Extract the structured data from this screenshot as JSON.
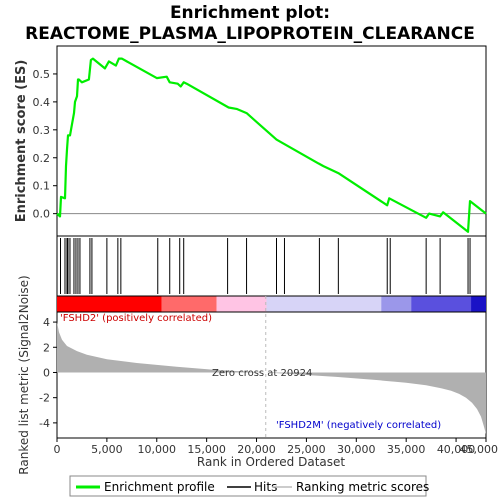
{
  "chart_data": {
    "type": "line",
    "title_line1": "Enrichment plot:",
    "title_line2": "REACTOME_PLASMA_LIPOPROTEIN_CLEARANCE",
    "es_ylabel": "Enrichment score (ES)",
    "metric_ylabel_line1": "Ranked list metric (Signal2Noise)",
    "xlabel": "Rank in Ordered Dataset",
    "xlim": [
      0,
      43000
    ],
    "es_ylim": [
      -0.08,
      0.6
    ],
    "metric_ylim": [
      -5.2,
      4.8
    ],
    "x_ticks": [
      "0",
      "5,000",
      "10,000",
      "15,000",
      "20,000",
      "25,000",
      "30,000",
      "35,000",
      "40,000",
      "45,000"
    ],
    "x_tick_values": [
      0,
      5000,
      10000,
      15000,
      20000,
      25000,
      30000,
      35000,
      40000,
      45000
    ],
    "es_ticks": [
      "0.0",
      "0.1",
      "0.2",
      "0.3",
      "0.4",
      "0.5"
    ],
    "es_tick_values": [
      0.0,
      0.1,
      0.2,
      0.3,
      0.4,
      0.5
    ],
    "metric_ticks": [
      "-4",
      "-2",
      "0",
      "2",
      "4"
    ],
    "metric_tick_values": [
      -4,
      -2,
      0,
      2,
      4
    ],
    "enrichment_profile": {
      "x": [
        0,
        300,
        400,
        800,
        900,
        1000,
        1100,
        1300,
        1500,
        1700,
        1800,
        2000,
        2100,
        2200,
        2500,
        3200,
        3400,
        3600,
        4800,
        5200,
        5900,
        6200,
        6500,
        10000,
        11000,
        11300,
        12100,
        12400,
        12700,
        13000,
        17200,
        18000,
        19000,
        22000,
        22500,
        26200,
        26700,
        28200,
        33100,
        33300,
        37000,
        37300,
        38400,
        38700,
        41200,
        41400,
        43000
      ],
      "y": [
        0.0,
        -0.01,
        0.06,
        0.055,
        0.17,
        0.23,
        0.28,
        0.28,
        0.32,
        0.36,
        0.4,
        0.42,
        0.48,
        0.48,
        0.47,
        0.48,
        0.55,
        0.555,
        0.52,
        0.545,
        0.53,
        0.555,
        0.555,
        0.485,
        0.49,
        0.47,
        0.465,
        0.455,
        0.47,
        0.465,
        0.38,
        0.375,
        0.36,
        0.265,
        0.255,
        0.18,
        0.17,
        0.145,
        0.03,
        0.055,
        -0.015,
        0.0,
        -0.01,
        0.005,
        -0.065,
        0.045,
        0.0
      ]
    },
    "hits": [
      350,
      800,
      1000,
      1100,
      1300,
      1700,
      1900,
      2100,
      2300,
      3300,
      3500,
      5000,
      6100,
      6400,
      10100,
      11300,
      12300,
      12700,
      17100,
      19000,
      22000,
      22800,
      26300,
      28200,
      33100,
      33400,
      37000,
      38400,
      41200,
      41400
    ],
    "metric_curve": {
      "x": [
        0,
        200,
        500,
        1000,
        2000,
        3000,
        5000,
        8000,
        12000,
        16000,
        20000,
        20924,
        24000,
        28000,
        32000,
        35000,
        37000,
        38500,
        39500,
        40300,
        41000,
        41600,
        42100,
        42500,
        42800,
        43000
      ],
      "y": [
        4.0,
        3.2,
        2.6,
        2.1,
        1.7,
        1.4,
        1.05,
        0.75,
        0.45,
        0.2,
        0.03,
        0.0,
        -0.15,
        -0.35,
        -0.6,
        -0.82,
        -1.02,
        -1.25,
        -1.45,
        -1.7,
        -2.0,
        -2.4,
        -2.9,
        -3.5,
        -4.3,
        -4.9
      ]
    },
    "heatmap_segments": [
      {
        "x0": 0,
        "x1": 10500,
        "color": "#ff0000"
      },
      {
        "x0": 10500,
        "x1": 16000,
        "color": "#ff6a6a"
      },
      {
        "x0": 16000,
        "x1": 21000,
        "color": "#ffc4e4"
      },
      {
        "x0": 21000,
        "x1": 32500,
        "color": "#d7d4f7"
      },
      {
        "x0": 32500,
        "x1": 35500,
        "color": "#9b97ea"
      },
      {
        "x0": 35500,
        "x1": 41500,
        "color": "#5a50de"
      },
      {
        "x0": 41500,
        "x1": 43000,
        "color": "#1a12c6"
      }
    ],
    "pos_label": "'FSHD2' (positively correlated)",
    "neg_label": "'FSHD2M' (negatively correlated)",
    "zero_cross_label": "Zero cross at 20924",
    "zero_cross_value": 20924,
    "legend": [
      "Enrichment profile",
      "Hits",
      "Ranking metric scores"
    ],
    "colors": {
      "profile": "#00ee00",
      "hits": "#000000",
      "metric_fill": "#b0b0b0",
      "pos_label": "#cc0000",
      "neg_label": "#0000cc",
      "zero_line": "#bbbbbb"
    }
  }
}
